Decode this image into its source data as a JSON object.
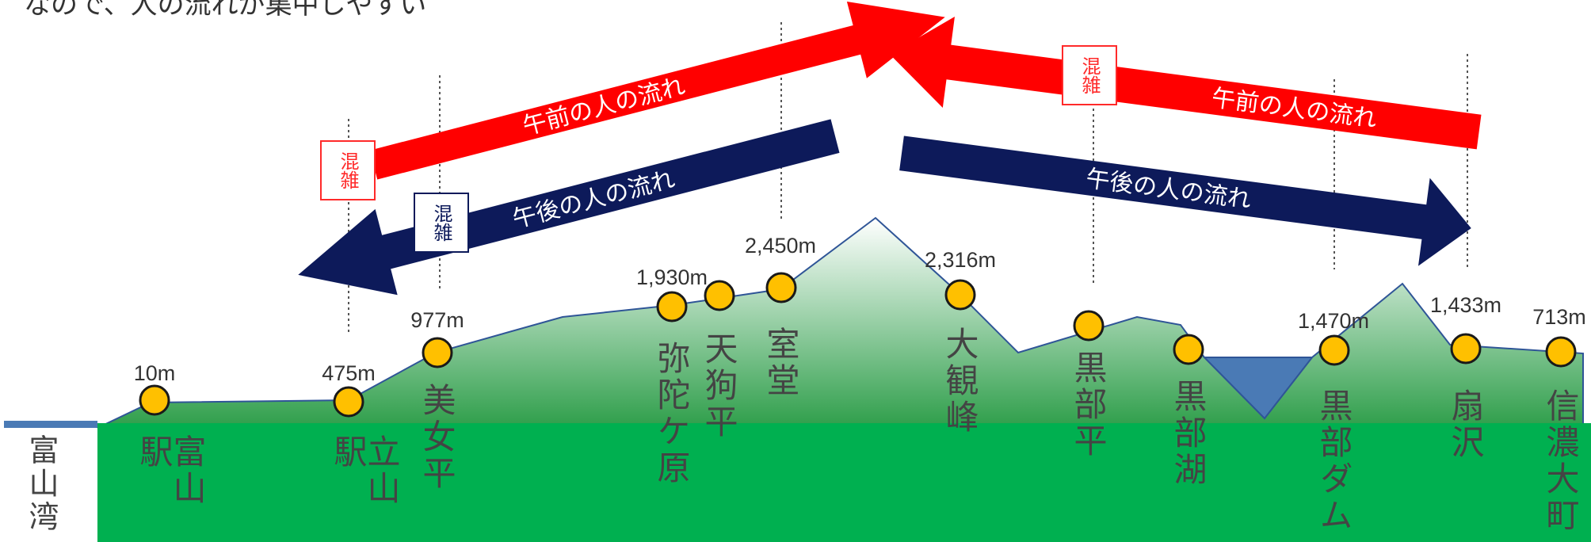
{
  "caption": "なので、人の流れが集中しやすい",
  "bay": {
    "name": "富山湾"
  },
  "stations": [
    {
      "id": "toyama",
      "name": "富山駅",
      "elevation": "10m"
    },
    {
      "id": "tateyama",
      "name": "立山駅",
      "elevation": "475m"
    },
    {
      "id": "bijodaira",
      "name": "美女平",
      "elevation": "977m"
    },
    {
      "id": "midagahara",
      "name": "弥陀ケ原",
      "elevation": "1,930m"
    },
    {
      "id": "tengudaira",
      "name": "天狗平",
      "elevation": ""
    },
    {
      "id": "murodo",
      "name": "室堂",
      "elevation": "2,450m"
    },
    {
      "id": "daikanbo",
      "name": "大観峰",
      "elevation": "2,316m"
    },
    {
      "id": "kurobedaira",
      "name": "黒部平",
      "elevation": ""
    },
    {
      "id": "kurobeko",
      "name": "黒部湖",
      "elevation": ""
    },
    {
      "id": "kurobedam",
      "name": "黒部ダム",
      "elevation": "1,470m"
    },
    {
      "id": "ogizawa",
      "name": "扇沢",
      "elevation": "1,433m"
    },
    {
      "id": "shinanoomachi",
      "name": "信濃大町",
      "elevation": "713m"
    }
  ],
  "flows": {
    "morning": "午前の人の流れ",
    "afternoon": "午後の人の流れ"
  },
  "congestion_label": "混雑",
  "colors": {
    "morning_arrow": "#ff0000",
    "afternoon_arrow": "#0d1a5a",
    "ground": "#00b050",
    "mountain_top": "#ffffff",
    "mountain_bottom": "#2e9e4a",
    "water": "#4a7ab5",
    "station_marker": "#ffc000",
    "station_marker_outline": "#1a1a1a"
  }
}
